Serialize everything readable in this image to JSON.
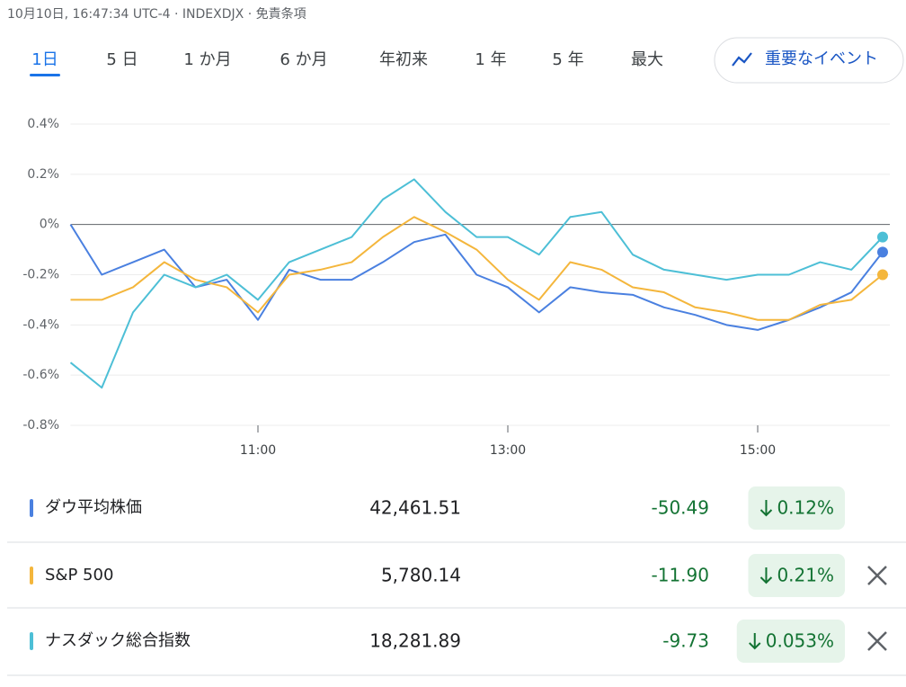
{
  "header": {
    "text": "10月10日, 16:47:34 UTC-4 · INDEXDJX · 免責条項"
  },
  "tabs": [
    "1日",
    "5 日",
    "1 か月",
    "6 か月",
    "年初来",
    "1 年",
    "5 年",
    "最大"
  ],
  "active_tab": 0,
  "events_button": "重要なイベント",
  "chart_data": {
    "type": "line",
    "x": [
      9.5,
      9.75,
      10,
      10.25,
      10.5,
      10.75,
      11,
      11.25,
      11.5,
      11.75,
      12,
      12.25,
      12.5,
      12.75,
      13,
      13.25,
      13.5,
      13.75,
      14,
      14.25,
      14.5,
      14.75,
      15,
      15.25,
      15.5,
      15.75,
      16
    ],
    "xlim": [
      9.5,
      16
    ],
    "xticks": [
      {
        "value": 11,
        "label": "11:00"
      },
      {
        "value": 13,
        "label": "13:00"
      },
      {
        "value": 15,
        "label": "15:00"
      }
    ],
    "ylim": [
      -0.8,
      0.4
    ],
    "yticks": [
      {
        "value": -0.8,
        "label": "-0.8%"
      },
      {
        "value": -0.6,
        "label": "-0.6%"
      },
      {
        "value": -0.4,
        "label": "-0.4%"
      },
      {
        "value": -0.2,
        "label": "-0.2%"
      },
      {
        "value": 0,
        "label": "0%"
      },
      {
        "value": 0.2,
        "label": "0.2%"
      },
      {
        "value": 0.4,
        "label": "0.4%"
      }
    ],
    "grid": true,
    "series": [
      {
        "name": "ダウ平均株価",
        "color": "#4a80e0",
        "values": [
          0,
          -0.2,
          -0.15,
          -0.1,
          -0.25,
          -0.22,
          -0.38,
          -0.18,
          -0.22,
          -0.22,
          -0.15,
          -0.07,
          -0.04,
          -0.2,
          -0.25,
          -0.35,
          -0.25,
          -0.27,
          -0.28,
          -0.33,
          -0.36,
          -0.4,
          -0.42,
          -0.38,
          -0.33,
          -0.27,
          -0.11
        ]
      },
      {
        "name": "S&P 500",
        "color": "#f4b63c",
        "values": [
          -0.3,
          -0.3,
          -0.25,
          -0.15,
          -0.22,
          -0.25,
          -0.35,
          -0.2,
          -0.18,
          -0.15,
          -0.05,
          0.03,
          -0.03,
          -0.1,
          -0.22,
          -0.3,
          -0.15,
          -0.18,
          -0.25,
          -0.27,
          -0.33,
          -0.35,
          -0.38,
          -0.38,
          -0.32,
          -0.3,
          -0.2
        ]
      },
      {
        "name": "ナスダック総合指数",
        "color": "#4dbfd6",
        "values": [
          -0.55,
          -0.65,
          -0.35,
          -0.2,
          -0.25,
          -0.2,
          -0.3,
          -0.15,
          -0.1,
          -0.05,
          0.1,
          0.18,
          0.05,
          -0.05,
          -0.05,
          -0.12,
          0.03,
          0.05,
          -0.12,
          -0.18,
          -0.2,
          -0.22,
          -0.2,
          -0.2,
          -0.15,
          -0.18,
          -0.05
        ]
      }
    ]
  },
  "quotes": [
    {
      "price": "42,461.51",
      "change": "-50.49",
      "change_percent": "0.12%",
      "removable": false
    },
    {
      "price": "5,780.14",
      "change": "-11.90",
      "change_percent": "0.21%",
      "removable": true
    },
    {
      "price": "18,281.89",
      "change": "-9.73",
      "change_percent": "0.053%",
      "removable": true
    }
  ]
}
